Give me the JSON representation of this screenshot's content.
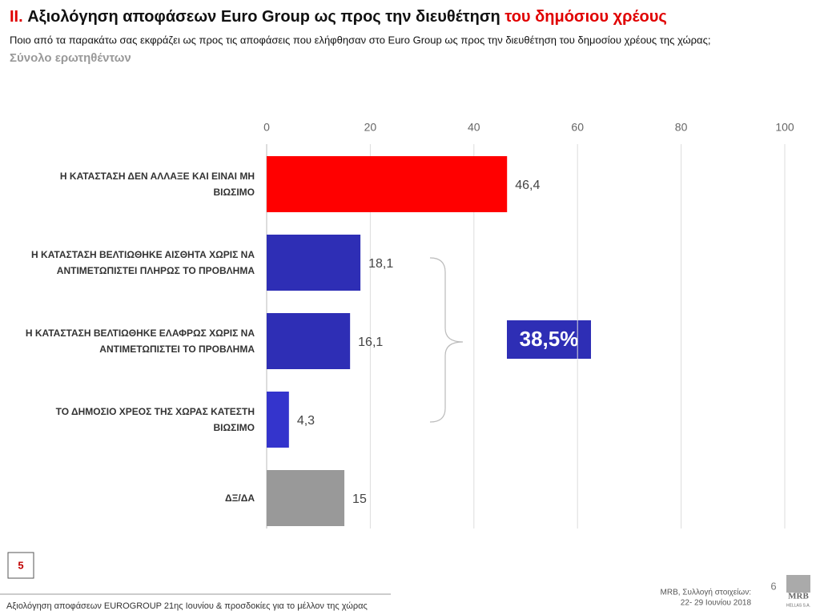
{
  "chart_data": {
    "type": "bar",
    "orientation": "horizontal",
    "title_prefix": "II.",
    "title": "Αξιολόγηση αποφάσεων Euro Group ως προς την διευθέτηση",
    "title_highlight": "του δημόσιου χρέους",
    "subtitle": "Ποιο από τα παρακάτω σας εκφράζει ως προς τις αποφάσεις που ελήφθησαν στο Euro Group ως προς την διευθέτηση του δημοσίου χρέους της χώρας;",
    "base": "Σύνολο ερωτηθέντων",
    "categories": [
      "Η ΚΑΤΑΣΤΑΣΗ ΔΕΝ ΑΛΛΑΞΕ ΚΑΙ ΕΙΝΑΙ ΜΗ ΒΙΩΣΙΜΟ",
      "Η ΚΑΤΑΣΤΑΣΗ ΒΕΛΤΙΩΘΗΚΕ ΑΙΣΘΗΤΑ ΧΩΡΙΣ ΝΑ ΑΝΤΙΜΕΤΩΠΙΣΤΕΙ ΠΛΗΡΩΣ ΤΟ ΠΡΟΒΛΗΜΑ",
      "Η ΚΑΤΑΣΤΑΣΗ ΒΕΛΤΙΩΘΗΚΕ ΕΛΑΦΡΩΣ ΧΩΡΙΣ ΝΑ ΑΝΤΙΜΕΤΩΠΙΣΤΕΙ ΤΟ ΠΡΟΒΛΗΜΑ",
      "ΤΟ ΔΗΜΟΣΙΟ ΧΡΕΟΣ ΤΗΣ ΧΩΡΑΣ ΚΑΤΕΣΤΗ ΒΙΩΣΙΜΟ",
      "ΔΞ/ΔΑ"
    ],
    "values": [
      46.4,
      18.1,
      16.1,
      4.3,
      15
    ],
    "value_labels": [
      "46,4",
      "18,1",
      "16,1",
      "4,3",
      "15"
    ],
    "colors": [
      "#ff0000",
      "#2e2eb5",
      "#2e2eb5",
      "#3434cc",
      "#999999"
    ],
    "xlim": [
      0,
      100
    ],
    "xticks": [
      0,
      20,
      40,
      60,
      80,
      100
    ],
    "grid": true,
    "annotation": "38,5%",
    "slide_number_box": "5",
    "footer": "Αξιολόγηση αποφάσεων EUROGROUP 21ης Ιουνίου & προσδοκίες για το μέλλον της χώρας",
    "source_line1": "MRB, Συλλογή στοιχείων:",
    "source_line2": "22- 29 Ιουνίου 2018",
    "page_number": "6",
    "logo": "MRB",
    "logo_sub": "HELLAS S.A."
  }
}
